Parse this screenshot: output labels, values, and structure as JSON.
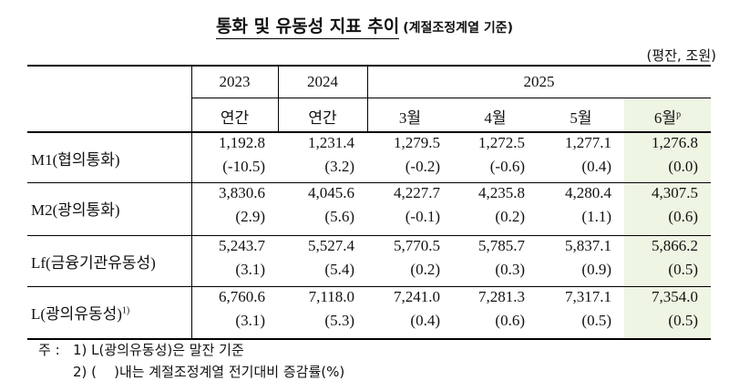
{
  "header": {
    "title": "통화 및 유동성 지표 추이",
    "subtitle": "(계절조정계열 기준)",
    "unit": "(평잔, 조원)"
  },
  "table": {
    "years": [
      "2023",
      "2024",
      "2025"
    ],
    "periods": [
      "연간",
      "연간",
      "3월",
      "4월",
      "5월",
      "6월"
    ],
    "preliminary_mark": "p",
    "rows": [
      {
        "label": "M1(협의통화)",
        "values": [
          "1,192.8",
          "1,231.4",
          "1,279.5",
          "1,272.5",
          "1,277.1",
          "1,276.8"
        ],
        "changes": [
          "(-10.5)",
          "(3.2)",
          "(-0.2)",
          "(-0.6)",
          "(0.4)",
          "(0.0)"
        ]
      },
      {
        "label": "M2(광의통화)",
        "values": [
          "3,830.6",
          "4,045.6",
          "4,227.7",
          "4,235.8",
          "4,280.4",
          "4,307.5"
        ],
        "changes": [
          "(2.9)",
          "(5.6)",
          "(-0.1)",
          "(0.2)",
          "(1.1)",
          "(0.6)"
        ]
      },
      {
        "label": "Lf(금융기관유동성)",
        "values": [
          "5,243.7",
          "5,527.4",
          "5,770.5",
          "5,785.7",
          "5,837.1",
          "5,866.2"
        ],
        "changes": [
          "(3.1)",
          "(5.4)",
          "(0.2)",
          "(0.3)",
          "(0.9)",
          "(0.5)"
        ]
      },
      {
        "label": "L(광의유동성)",
        "label_note": "1)",
        "values": [
          "6,760.6",
          "7,118.0",
          "7,241.0",
          "7,281.3",
          "7,317.1",
          "7,354.0"
        ],
        "changes": [
          "(3.1)",
          "(5.3)",
          "(0.4)",
          "(0.6)",
          "(0.5)",
          "(0.5)"
        ]
      }
    ]
  },
  "notes": {
    "prefix": "주 :",
    "items": [
      "1) L(광의유동성)은 말잔 기준",
      "2) (    )내는 계절조정계열 전기대비 증감률(%)"
    ]
  }
}
